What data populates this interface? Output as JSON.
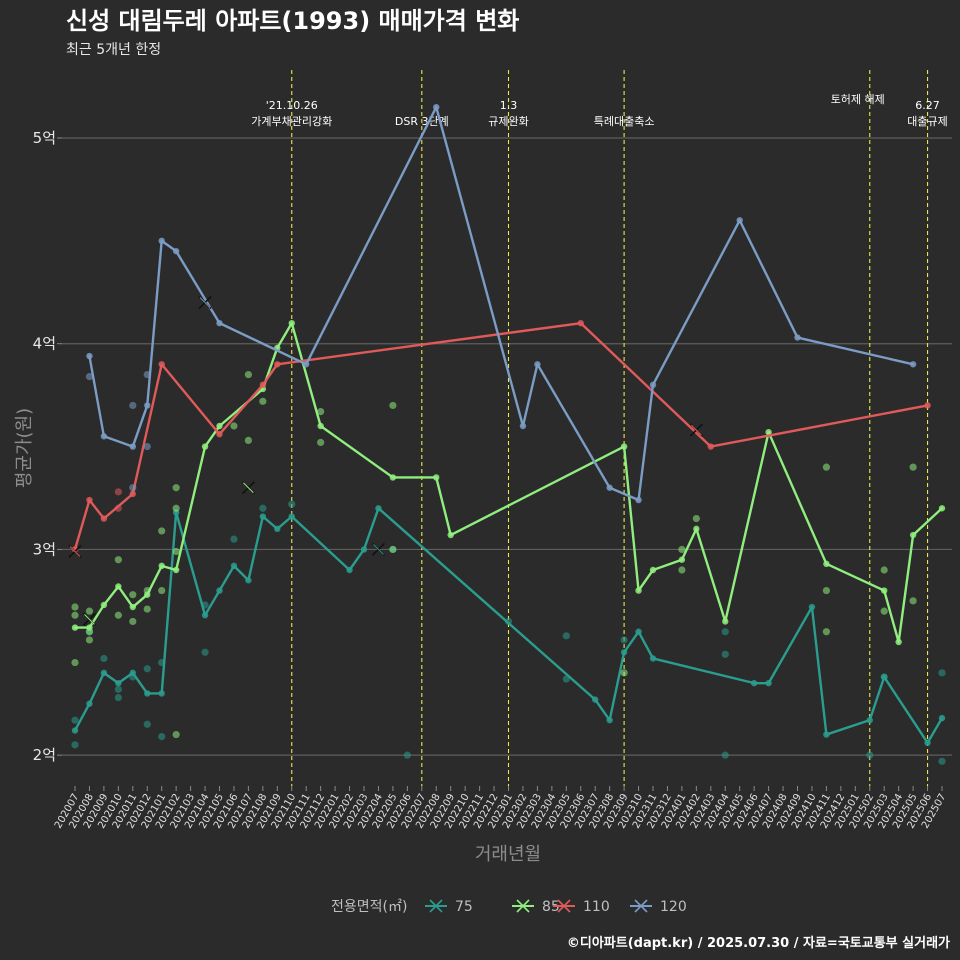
{
  "chart_data": {
    "type": "line",
    "title": "신성 대림두레 아파트(1993) 매매가격 변화",
    "subtitle": "최근 5개년 한정",
    "xlabel": "거래년월",
    "ylabel": "평균가(원)",
    "caption": "©디아파트(dapt.kr) / 2025.07.30 / 자료=국토교통부 실거래가",
    "ylim": [
      1.85,
      5.35
    ],
    "y_ticks": [
      {
        "value": 2,
        "label": "2억"
      },
      {
        "value": 3,
        "label": "3억"
      },
      {
        "value": 4,
        "label": "4억"
      },
      {
        "value": 5,
        "label": "5억"
      }
    ],
    "x_categories": [
      "202007",
      "202008",
      "202009",
      "202010",
      "202011",
      "202012",
      "202101",
      "202102",
      "202103",
      "202104",
      "202105",
      "202106",
      "202107",
      "202108",
      "202109",
      "202110",
      "202111",
      "202112",
      "202201",
      "202202",
      "202203",
      "202204",
      "202205",
      "202206",
      "202207",
      "202208",
      "202209",
      "202210",
      "202211",
      "202212",
      "202301",
      "202302",
      "202303",
      "202304",
      "202305",
      "202306",
      "202307",
      "202308",
      "202309",
      "202310",
      "202311",
      "202312",
      "202401",
      "202402",
      "202403",
      "202404",
      "202405",
      "202406",
      "202407",
      "202408",
      "202409",
      "202410",
      "202411",
      "202412",
      "202501",
      "202502",
      "202503",
      "202504",
      "202505",
      "202506",
      "202507"
    ],
    "events": [
      {
        "x": "202110",
        "lines": [
          "'21.10.26",
          "가계부채관리강화"
        ]
      },
      {
        "x": "202207",
        "lines": [
          "DSR 3단계"
        ]
      },
      {
        "x": "202301",
        "lines": [
          "1.3",
          "규제완화"
        ]
      },
      {
        "x": "202309",
        "lines": [
          "특례대출축소"
        ]
      },
      {
        "x": "202502",
        "lines": [
          "토허제 해제"
        ]
      },
      {
        "x": "202506",
        "lines": [
          "6.27",
          "대출규제"
        ]
      }
    ],
    "legend": {
      "title": "전용면적(㎡)",
      "position": "bottom"
    },
    "series": [
      {
        "name": "75",
        "color": "#2a9d8f",
        "line": [
          [
            "202007",
            2.12
          ],
          [
            "202008",
            2.25
          ],
          [
            "202009",
            2.4
          ],
          [
            "202010",
            2.35
          ],
          [
            "202011",
            2.4
          ],
          [
            "202012",
            2.3
          ],
          [
            "202101",
            2.3
          ],
          [
            "202102",
            3.18
          ],
          [
            "202104",
            2.68
          ],
          [
            "202105",
            2.8
          ],
          [
            "202106",
            2.92
          ],
          [
            "202107",
            2.85
          ],
          [
            "202108",
            3.16
          ],
          [
            "202109",
            3.1
          ],
          [
            "202110",
            3.16
          ],
          [
            "202202",
            2.9
          ],
          [
            "202203",
            3.0
          ],
          [
            "202204",
            3.2
          ],
          [
            "202307",
            2.27
          ],
          [
            "202308",
            2.17
          ],
          [
            "202309",
            2.5
          ],
          [
            "202310",
            2.6
          ],
          [
            "202311",
            2.47
          ],
          [
            "202406",
            2.35
          ],
          [
            "202407",
            2.35
          ],
          [
            "202410",
            2.72
          ],
          [
            "202411",
            2.1
          ],
          [
            "202502",
            2.17
          ],
          [
            "202503",
            2.38
          ],
          [
            "202506",
            2.06
          ],
          [
            "202507",
            2.18
          ]
        ],
        "points": [
          [
            "202007",
            2.05
          ],
          [
            "202007",
            2.17
          ],
          [
            "202008",
            2.6
          ],
          [
            "202009",
            2.47
          ],
          [
            "202010",
            2.28
          ],
          [
            "202010",
            2.32
          ],
          [
            "202011",
            2.38
          ],
          [
            "202012",
            2.15
          ],
          [
            "202012",
            2.42
          ],
          [
            "202101",
            2.09
          ],
          [
            "202101",
            2.45
          ],
          [
            "202104",
            2.73
          ],
          [
            "202104",
            2.5
          ],
          [
            "202106",
            3.05
          ],
          [
            "202108",
            3.2
          ],
          [
            "202110",
            3.22
          ],
          [
            "202205",
            3.0
          ],
          [
            "202206",
            2.0
          ],
          [
            "202301",
            2.65
          ],
          [
            "202305",
            2.37
          ],
          [
            "202305",
            2.58
          ],
          [
            "202309",
            2.56
          ],
          [
            "202404",
            2.6
          ],
          [
            "202404",
            2.49
          ],
          [
            "202404",
            2.0
          ],
          [
            "202502",
            2.0
          ],
          [
            "202503",
            2.38
          ],
          [
            "202507",
            1.97
          ],
          [
            "202507",
            2.4
          ]
        ],
        "crosses": [
          [
            "202204",
            3.0
          ]
        ]
      },
      {
        "name": "85",
        "color": "#90ee7e",
        "line": [
          [
            "202007",
            2.62
          ],
          [
            "202008",
            2.62
          ],
          [
            "202009",
            2.73
          ],
          [
            "202010",
            2.82
          ],
          [
            "202011",
            2.72
          ],
          [
            "202012",
            2.78
          ],
          [
            "202101",
            2.92
          ],
          [
            "202102",
            2.9
          ],
          [
            "202104",
            3.5
          ],
          [
            "202105",
            3.6
          ],
          [
            "202108",
            3.78
          ],
          [
            "202109",
            3.98
          ],
          [
            "202110",
            4.1
          ],
          [
            "202112",
            3.6
          ],
          [
            "202205",
            3.35
          ],
          [
            "202208",
            3.35
          ],
          [
            "202209",
            3.07
          ],
          [
            "202309",
            3.5
          ],
          [
            "202310",
            2.8
          ],
          [
            "202311",
            2.9
          ],
          [
            "202401",
            2.95
          ],
          [
            "202402",
            3.1
          ],
          [
            "202404",
            2.65
          ],
          [
            "202407",
            3.57
          ],
          [
            "202411",
            2.93
          ],
          [
            "202503",
            2.8
          ],
          [
            "202504",
            2.55
          ],
          [
            "202505",
            3.07
          ],
          [
            "202507",
            3.2
          ]
        ],
        "points": [
          [
            "202007",
            2.72
          ],
          [
            "202007",
            2.68
          ],
          [
            "202007",
            2.45
          ],
          [
            "202008",
            2.7
          ],
          [
            "202008",
            2.6
          ],
          [
            "202008",
            2.56
          ],
          [
            "202010",
            2.95
          ],
          [
            "202010",
            2.68
          ],
          [
            "202011",
            2.78
          ],
          [
            "202011",
            2.65
          ],
          [
            "202012",
            2.8
          ],
          [
            "202012",
            2.71
          ],
          [
            "202101",
            3.09
          ],
          [
            "202101",
            2.8
          ],
          [
            "202102",
            3.3
          ],
          [
            "202102",
            3.2
          ],
          [
            "202102",
            2.99
          ],
          [
            "202102",
            2.1
          ],
          [
            "202106",
            3.6
          ],
          [
            "202107",
            3.85
          ],
          [
            "202107",
            3.53
          ],
          [
            "202108",
            3.72
          ],
          [
            "202112",
            3.67
          ],
          [
            "202112",
            3.52
          ],
          [
            "202205",
            3.7
          ],
          [
            "202205",
            3.0
          ],
          [
            "202309",
            2.4
          ],
          [
            "202401",
            3.0
          ],
          [
            "202401",
            2.9
          ],
          [
            "202402",
            3.15
          ],
          [
            "202411",
            3.4
          ],
          [
            "202411",
            2.8
          ],
          [
            "202411",
            2.6
          ],
          [
            "202503",
            2.9
          ],
          [
            "202503",
            2.7
          ],
          [
            "202505",
            3.4
          ],
          [
            "202505",
            2.75
          ]
        ],
        "crosses": [
          [
            "202008",
            2.66
          ],
          [
            "202107",
            3.3
          ]
        ]
      },
      {
        "name": "110",
        "color": "#e05a5a",
        "line": [
          [
            "202007",
            3.0
          ],
          [
            "202008",
            3.24
          ],
          [
            "202009",
            3.15
          ],
          [
            "202011",
            3.27
          ],
          [
            "202101",
            3.9
          ],
          [
            "202105",
            3.56
          ],
          [
            "202108",
            3.8
          ],
          [
            "202109",
            3.9
          ],
          [
            "202306",
            4.1
          ],
          [
            "202403",
            3.5
          ],
          [
            "202506",
            3.7
          ]
        ],
        "points": [
          [
            "202010",
            3.2
          ],
          [
            "202010",
            3.28
          ]
        ],
        "crosses": [
          [
            "202007",
            2.99
          ],
          [
            "202402",
            3.58
          ]
        ]
      },
      {
        "name": "120",
        "color": "#7b9cc4",
        "line": [
          [
            "202008",
            3.94
          ],
          [
            "202009",
            3.55
          ],
          [
            "202011",
            3.5
          ],
          [
            "202012",
            3.7
          ],
          [
            "202101",
            4.5
          ],
          [
            "202102",
            4.45
          ],
          [
            "202105",
            4.1
          ],
          [
            "202111",
            3.9
          ],
          [
            "202208",
            5.15
          ],
          [
            "202302",
            3.6
          ],
          [
            "202303",
            3.9
          ],
          [
            "202308",
            3.3
          ],
          [
            "202310",
            3.24
          ],
          [
            "202311",
            3.8
          ],
          [
            "202405",
            4.6
          ],
          [
            "202409",
            4.03
          ],
          [
            "202505",
            3.9
          ]
        ],
        "points": [
          [
            "202008",
            3.84
          ],
          [
            "202011",
            3.7
          ],
          [
            "202011",
            3.3
          ],
          [
            "202012",
            3.85
          ],
          [
            "202012",
            3.5
          ]
        ],
        "crosses": [
          [
            "202104",
            4.2
          ]
        ]
      }
    ]
  }
}
